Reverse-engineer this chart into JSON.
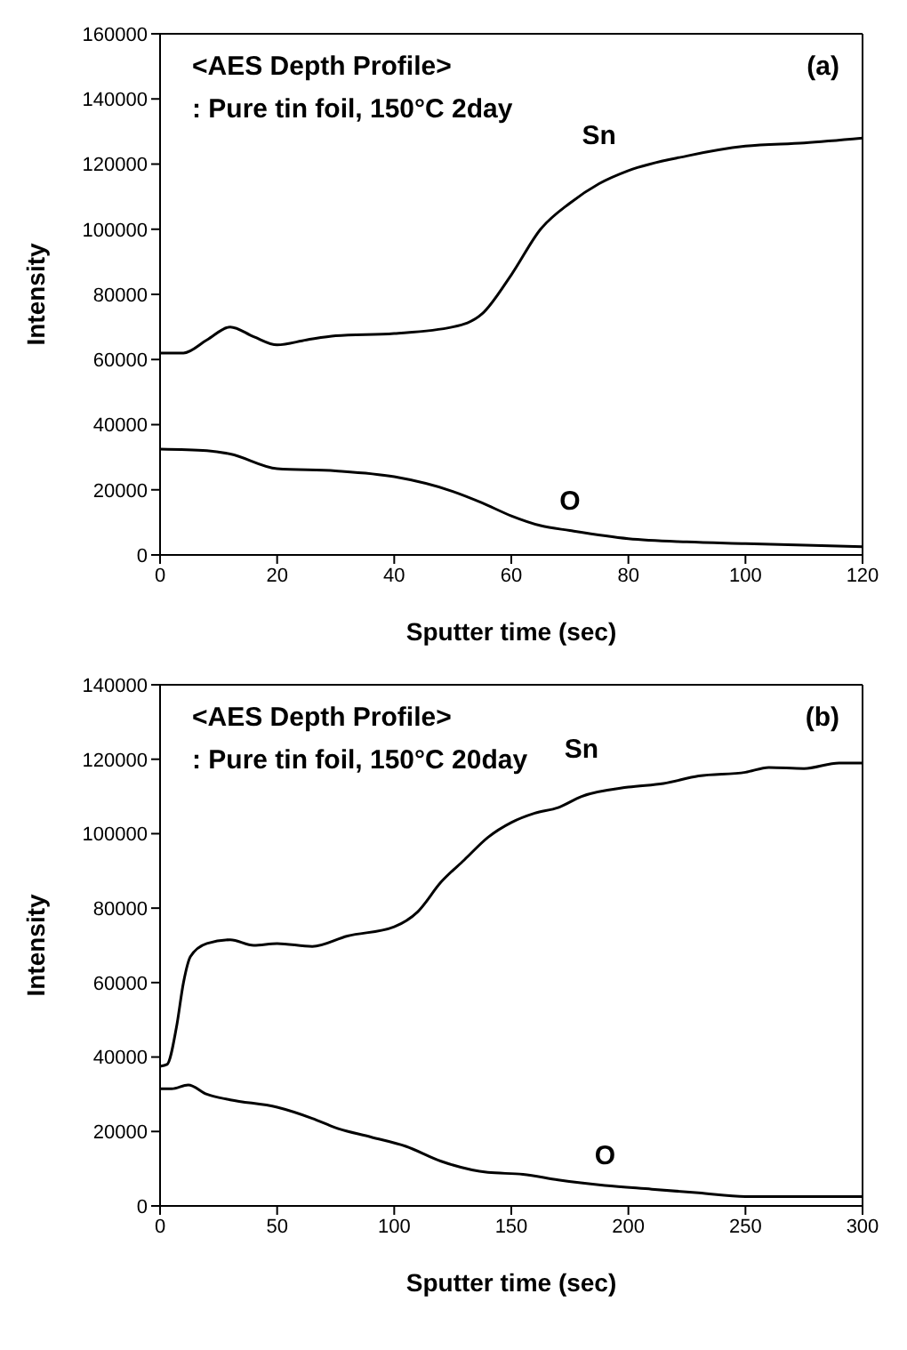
{
  "chart_data": [
    {
      "type": "line",
      "title": "<AES Depth Profile>",
      "subtitle": ": Pure tin foil, 150°C 2day",
      "xlabel": "Sputter time (sec)",
      "ylabel": "Intensity",
      "annotations": [
        "(a)"
      ],
      "marker": "none",
      "xlim": [
        0,
        120
      ],
      "xticks": [
        0,
        20,
        40,
        60,
        80,
        100,
        120
      ],
      "ylim": [
        0,
        160000
      ],
      "yticks": [
        0,
        20000,
        40000,
        60000,
        80000,
        100000,
        120000,
        140000,
        160000
      ],
      "series": [
        {
          "name": "Sn",
          "color": "#000000",
          "x": [
            0,
            4,
            8,
            12,
            16,
            20,
            25,
            30,
            40,
            50,
            55,
            60,
            65,
            70,
            75,
            80,
            90,
            100,
            110,
            120
          ],
          "values": [
            62000,
            62000,
            66000,
            70000,
            67000,
            64500,
            66000,
            67300,
            68000,
            70000,
            74000,
            86000,
            100000,
            108000,
            114000,
            118000,
            122500,
            125500,
            126500,
            128000
          ]
        },
        {
          "name": "O",
          "color": "#000000",
          "x": [
            0,
            8,
            12,
            20,
            30,
            40,
            50,
            55,
            60,
            65,
            70,
            80,
            90,
            100,
            120
          ],
          "values": [
            32500,
            32000,
            31000,
            26500,
            25800,
            24000,
            19500,
            16000,
            12000,
            9000,
            7500,
            5000,
            4000,
            3500,
            2500
          ]
        }
      ]
    },
    {
      "type": "line",
      "title": "<AES Depth Profile>",
      "subtitle": ": Pure tin foil, 150°C 20day",
      "xlabel": "Sputter time (sec)",
      "ylabel": "Intensity",
      "annotations": [
        "(b)"
      ],
      "marker": "none",
      "xlim": [
        0,
        300
      ],
      "xticks": [
        0,
        50,
        100,
        150,
        200,
        250,
        300
      ],
      "ylim": [
        0,
        140000
      ],
      "yticks": [
        0,
        20000,
        40000,
        60000,
        80000,
        100000,
        120000,
        140000
      ],
      "series": [
        {
          "name": "Sn",
          "color": "#000000",
          "x": [
            0,
            3,
            7,
            10,
            13,
            20,
            30,
            40,
            50,
            65,
            80,
            100,
            110,
            120,
            130,
            140,
            150,
            160,
            170,
            180,
            200,
            215,
            230,
            250,
            260,
            275,
            290,
            300
          ],
          "values": [
            37500,
            38000,
            48000,
            60000,
            67000,
            70500,
            71500,
            70000,
            70500,
            69700,
            72500,
            75000,
            79000,
            87000,
            93000,
            99000,
            103000,
            105500,
            107000,
            110000,
            112500,
            113500,
            115500,
            116500,
            117800,
            117500,
            119000,
            119000
          ]
        },
        {
          "name": "O",
          "color": "#000000",
          "x": [
            0,
            5,
            12,
            20,
            30,
            50,
            65,
            75,
            90,
            105,
            120,
            140,
            155,
            170,
            190,
            210,
            230,
            250,
            270,
            300
          ],
          "values": [
            31500,
            31500,
            32500,
            30000,
            28500,
            26500,
            23500,
            21000,
            18500,
            16000,
            12000,
            9000,
            8500,
            7000,
            5500,
            4500,
            3500,
            2500,
            2500,
            2500
          ]
        }
      ]
    }
  ]
}
